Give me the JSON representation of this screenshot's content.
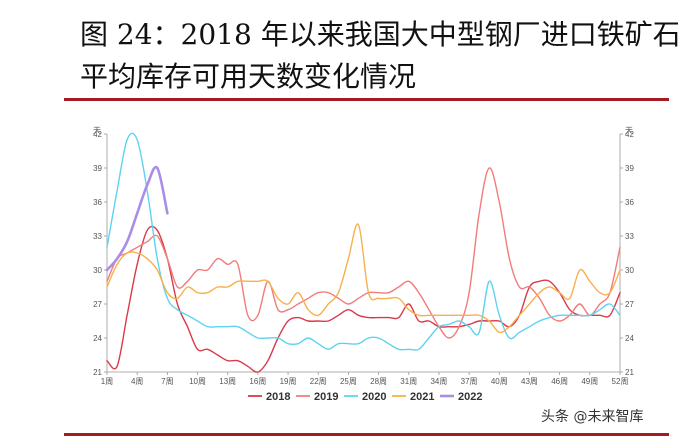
{
  "figure": {
    "title_line1": "图 24：2018 年以来我国大中型钢厂进口铁矿石",
    "title_line2": "平均库存可用天数变化情况",
    "accent_color": "#a61b22"
  },
  "watermark": {
    "text": "头条 @未来智库"
  },
  "chart_data": {
    "type": "line",
    "ylabel_left": "天",
    "ylabel_right": "天",
    "ylim": [
      21,
      42
    ],
    "yticks": [
      21,
      24,
      27,
      30,
      33,
      36,
      39,
      42
    ],
    "xlim": [
      1,
      52
    ],
    "xticks": [
      "1周",
      "4周",
      "7周",
      "10周",
      "13周",
      "16周",
      "19周",
      "22周",
      "25周",
      "28周",
      "31周",
      "34周",
      "37周",
      "40周",
      "43周",
      "46周",
      "49周",
      "52周"
    ],
    "xtick_values": [
      1,
      4,
      7,
      10,
      13,
      16,
      19,
      22,
      25,
      28,
      31,
      34,
      37,
      40,
      43,
      46,
      49,
      52
    ],
    "legend_position": "bottom",
    "grid": false,
    "series": [
      {
        "name": "2018",
        "color": "#d93a4a",
        "x": [
          1,
          2,
          3,
          4,
          5,
          6,
          7,
          8,
          9,
          10,
          11,
          12,
          13,
          14,
          15,
          16,
          17,
          18,
          19,
          20,
          21,
          22,
          23,
          24,
          25,
          26,
          27,
          28,
          29,
          30,
          31,
          32,
          33,
          34,
          35,
          36,
          37,
          38,
          39,
          40,
          41,
          42,
          43,
          44,
          45,
          46,
          47,
          48,
          49,
          50,
          51,
          52
        ],
        "y": [
          22,
          21.5,
          26,
          30.5,
          33.5,
          33.5,
          31,
          27,
          25,
          23,
          23,
          22.5,
          22,
          22,
          21.5,
          21,
          22,
          24,
          25.5,
          25.8,
          25.5,
          25.5,
          25.5,
          26,
          26.5,
          26,
          25.8,
          25.8,
          25.8,
          25.8,
          27,
          25.5,
          25.5,
          25,
          25,
          25,
          25.2,
          25.5,
          25.5,
          25.5,
          25,
          26,
          28.5,
          29,
          29,
          28,
          26.5,
          26,
          26,
          26,
          26,
          28
        ]
      },
      {
        "name": "2019",
        "color": "#f27c7c",
        "x": [
          1,
          2,
          3,
          4,
          5,
          6,
          7,
          8,
          9,
          10,
          11,
          12,
          13,
          14,
          15,
          16,
          17,
          18,
          19,
          20,
          21,
          22,
          23,
          24,
          25,
          26,
          27,
          28,
          29,
          30,
          31,
          32,
          33,
          34,
          35,
          36,
          37,
          38,
          39,
          40,
          41,
          42,
          43,
          44,
          45,
          46,
          47,
          48,
          49,
          50,
          51,
          52
        ],
        "y": [
          29,
          31,
          31.5,
          32,
          32.5,
          33,
          31,
          28.5,
          29,
          30,
          30,
          31,
          30.5,
          30.5,
          26,
          26,
          29,
          26.5,
          26.5,
          27,
          27.5,
          28,
          28,
          27.5,
          27,
          27.5,
          28,
          28,
          28,
          28.5,
          29,
          28,
          26.5,
          25,
          24,
          25,
          28,
          35,
          39,
          36,
          31,
          28.5,
          28.5,
          27.5,
          26,
          25.5,
          26,
          27,
          26,
          27,
          28,
          32
        ]
      },
      {
        "name": "2020",
        "color": "#5ed3f0",
        "x": [
          1,
          2,
          3,
          4,
          5,
          6,
          7,
          8,
          9,
          10,
          11,
          12,
          13,
          14,
          15,
          16,
          17,
          18,
          19,
          20,
          21,
          22,
          23,
          24,
          25,
          26,
          27,
          28,
          29,
          30,
          31,
          32,
          33,
          34,
          35,
          36,
          37,
          38,
          39,
          40,
          41,
          42,
          43,
          44,
          45,
          46,
          47,
          48,
          49,
          50,
          51,
          52
        ],
        "y": [
          32,
          37,
          41.5,
          41.5,
          37,
          31,
          27.5,
          26.5,
          26,
          25.5,
          25,
          25,
          25,
          25,
          24.5,
          24,
          24,
          24,
          23.5,
          23.5,
          24,
          23.5,
          23,
          23.5,
          23.5,
          23.5,
          24,
          24,
          23.5,
          23,
          23,
          23,
          24,
          25,
          25.2,
          25.5,
          25,
          24.5,
          29,
          26,
          24,
          24.5,
          25,
          25.5,
          25.8,
          26,
          26,
          26,
          26,
          26.5,
          27,
          26
        ]
      },
      {
        "name": "2021",
        "color": "#f7b04c",
        "x": [
          1,
          2,
          3,
          4,
          5,
          6,
          7,
          8,
          9,
          10,
          11,
          12,
          13,
          14,
          15,
          16,
          17,
          18,
          19,
          20,
          21,
          22,
          23,
          24,
          25,
          26,
          27,
          28,
          29,
          30,
          31,
          32,
          33,
          34,
          35,
          36,
          37,
          38,
          39,
          40,
          41,
          42,
          43,
          44,
          45,
          46,
          47,
          48,
          49,
          50,
          51,
          52
        ],
        "y": [
          28.5,
          30.5,
          31.5,
          31.5,
          31,
          30,
          28,
          27.5,
          28.5,
          28,
          28,
          28.5,
          28.5,
          29,
          29,
          29,
          29,
          27.5,
          27,
          28,
          26.5,
          26,
          27,
          28,
          31,
          34,
          28,
          27.5,
          27.5,
          27.5,
          26.5,
          26,
          26,
          26,
          26,
          26,
          26,
          26,
          25.5,
          24.5,
          25,
          26,
          27,
          28,
          28.5,
          28,
          27.5,
          30,
          29,
          28,
          28,
          30
        ]
      },
      {
        "name": "2022",
        "color": "#a98ee9",
        "x": [
          1,
          2,
          3,
          4,
          5,
          6,
          7
        ],
        "y": [
          30,
          31,
          32.5,
          35,
          37.5,
          39,
          35
        ]
      }
    ]
  }
}
